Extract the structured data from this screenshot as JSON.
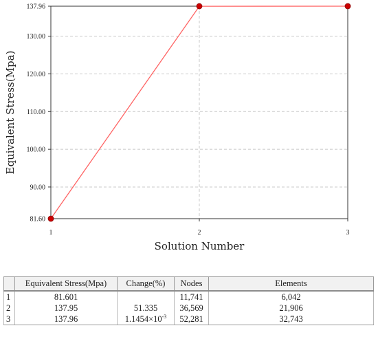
{
  "chart_data": {
    "type": "line",
    "xlabel": "Solution Number",
    "ylabel": "Equivalent Stress(Mpa)",
    "x": [
      1,
      2,
      3
    ],
    "x_tick_labels": [
      "1",
      "2",
      "3"
    ],
    "y_tick_labels": [
      "81.60",
      "90.00",
      "100.00",
      "110.00",
      "120.00",
      "130.00",
      "137.96"
    ],
    "y_ticks": [
      81.6,
      90,
      100,
      110,
      120,
      130,
      137.96
    ],
    "ylim": [
      81.6,
      137.96
    ],
    "xlim": [
      1,
      3
    ],
    "series": [
      {
        "values": [
          81.601,
          137.95,
          137.96
        ]
      }
    ],
    "grid": true,
    "colors": {
      "line": "#ff6464",
      "marker": "#cc0000",
      "grid": "#c8c8c8"
    }
  },
  "table": {
    "headers": [
      "",
      "Equivalent Stress(Mpa)",
      "Change(%)",
      "Nodes",
      "Elements"
    ],
    "rows": [
      {
        "index": "1",
        "stress": "81.601",
        "change": "",
        "change_base": "",
        "change_exp": "",
        "nodes": "11,741",
        "elements": "6,042"
      },
      {
        "index": "2",
        "stress": "137.95",
        "change": "51.335",
        "change_base": "",
        "change_exp": "",
        "nodes": "36,569",
        "elements": "21,906"
      },
      {
        "index": "3",
        "stress": "137.96",
        "change": "",
        "change_base": "1.1454×10",
        "change_exp": "-3",
        "nodes": "52,281",
        "elements": "32,743"
      }
    ]
  }
}
